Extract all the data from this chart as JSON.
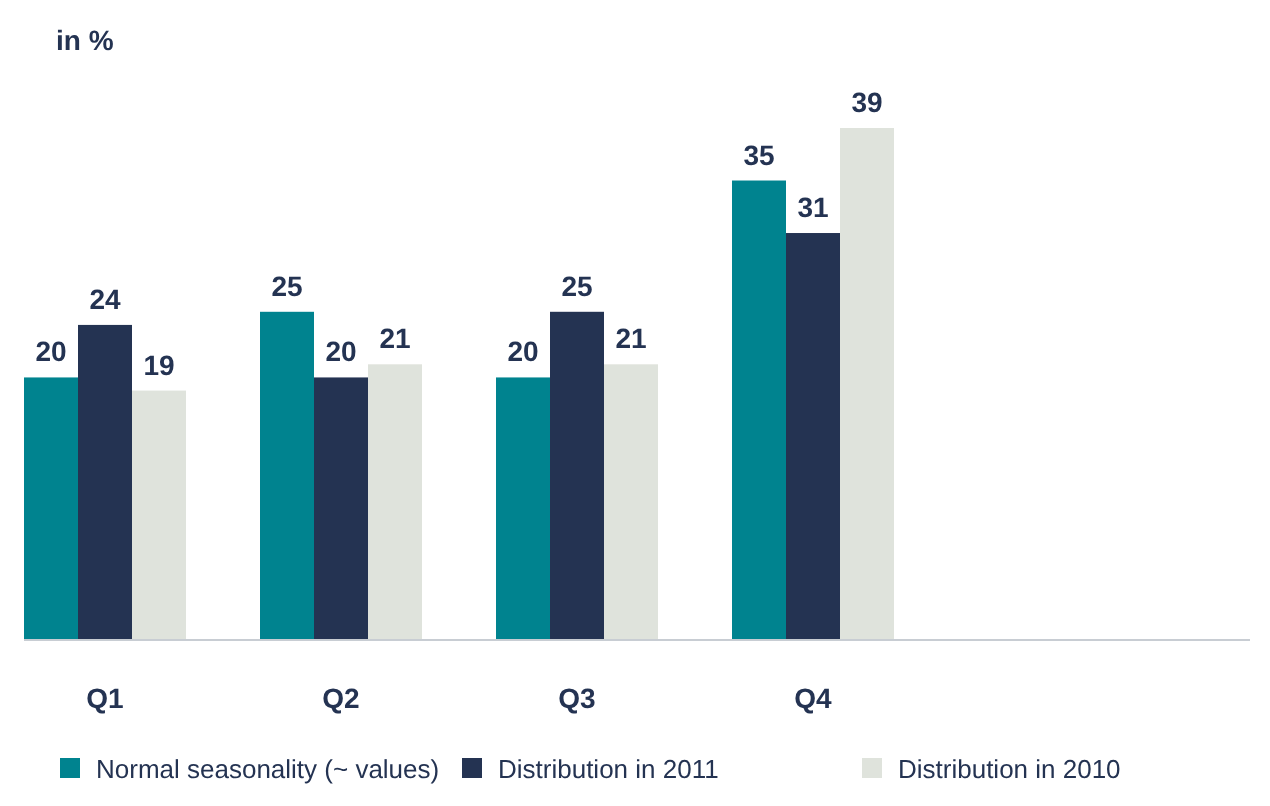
{
  "chart_data": {
    "type": "bar",
    "ylabel": "in %",
    "categories": [
      "Q1",
      "Q2",
      "Q3",
      "Q4"
    ],
    "series": [
      {
        "name": "Normal seasonality (~ values)",
        "color": "#00838f",
        "values": [
          20,
          25,
          20,
          35
        ]
      },
      {
        "name": "Distribution in 2011",
        "color": "#243352",
        "values": [
          24,
          20,
          25,
          31
        ]
      },
      {
        "name": "Distribution in 2010",
        "color": "#dfe3dc",
        "values": [
          19,
          21,
          21,
          39
        ]
      }
    ],
    "data_labels": true,
    "legend": "bottom"
  }
}
